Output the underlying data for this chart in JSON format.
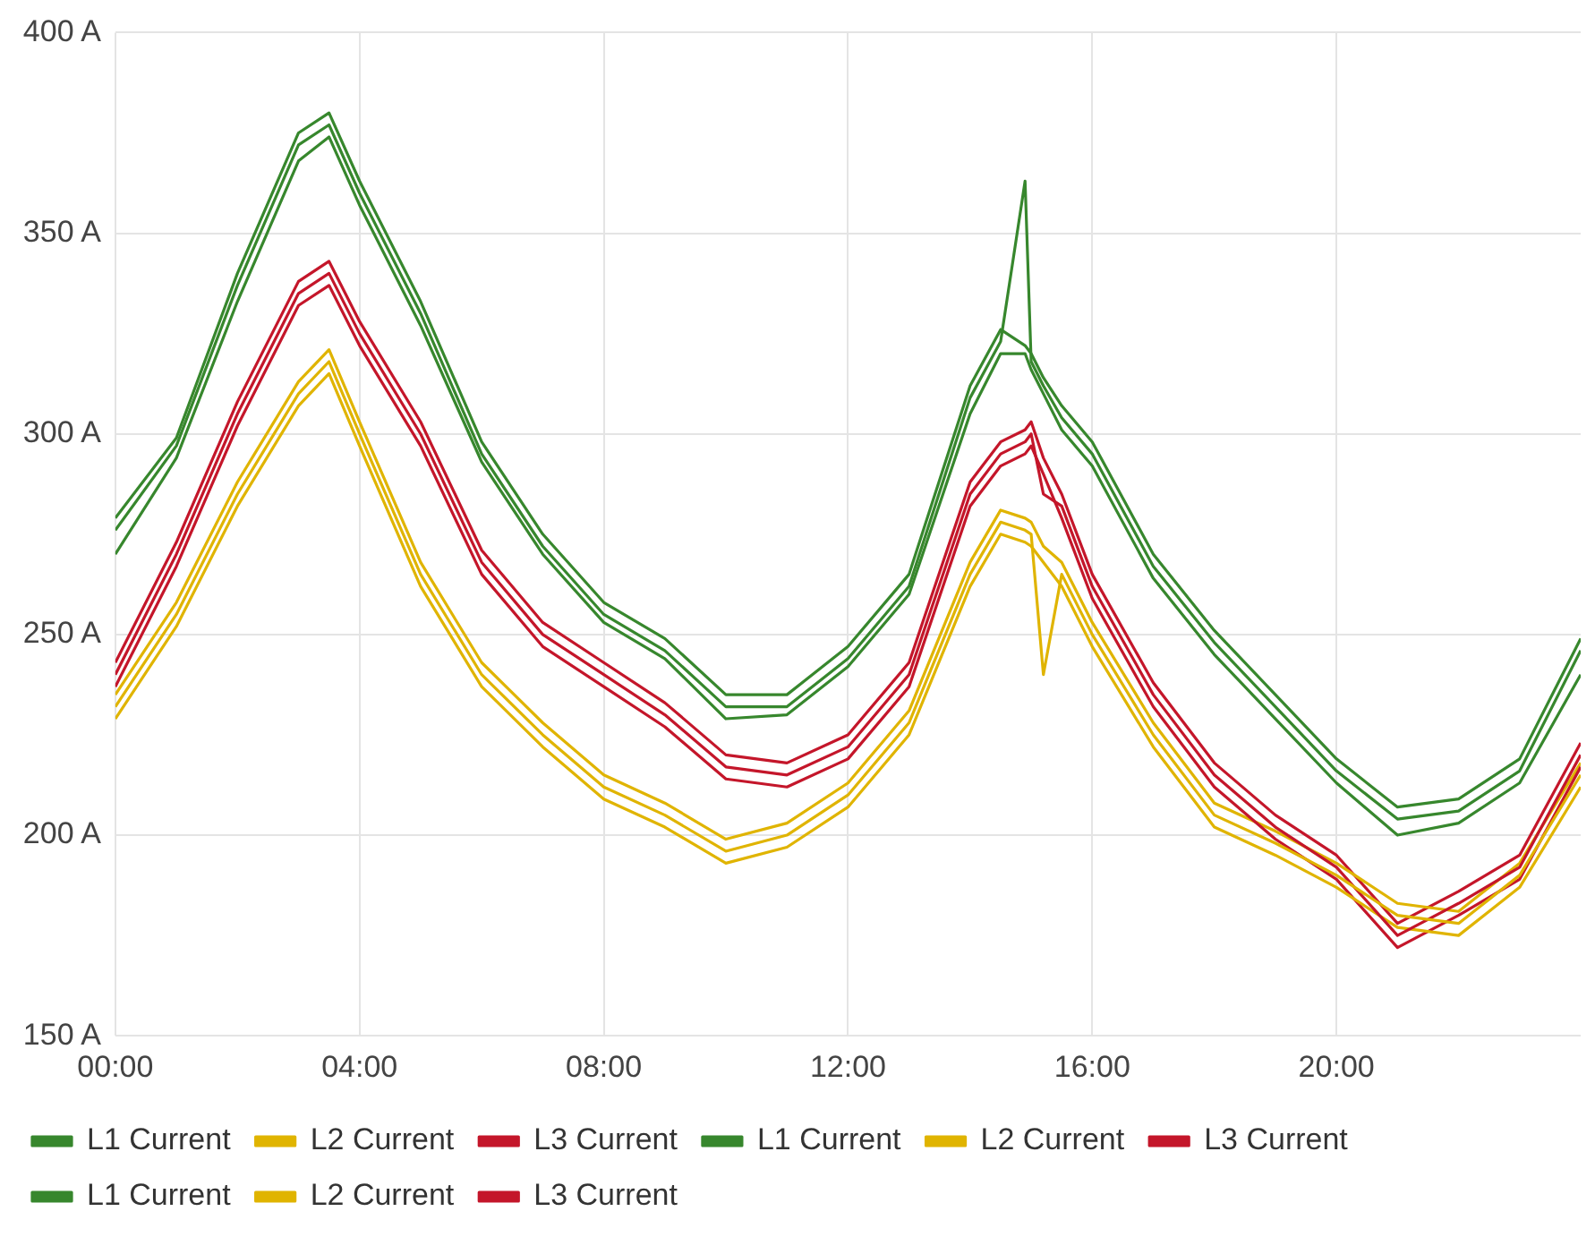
{
  "chart_data": {
    "type": "line",
    "x": [
      0,
      1,
      2,
      3,
      3.5,
      4,
      5,
      6,
      7,
      8,
      9,
      10,
      11,
      12,
      13,
      14,
      14.5,
      14.9,
      15,
      15.2,
      15.5,
      16,
      17,
      18,
      19,
      20,
      21,
      22,
      23,
      24
    ],
    "xlim": [
      0,
      24
    ],
    "xticks": [
      {
        "value": 0,
        "label": "00:00"
      },
      {
        "value": 4,
        "label": "04:00"
      },
      {
        "value": 8,
        "label": "08:00"
      },
      {
        "value": 12,
        "label": "12:00"
      },
      {
        "value": 16,
        "label": "16:00"
      },
      {
        "value": 20,
        "label": "20:00"
      }
    ],
    "ylim": [
      150,
      400
    ],
    "yticks": [
      {
        "value": 150,
        "label": "150 A"
      },
      {
        "value": 200,
        "label": "200 A"
      },
      {
        "value": 250,
        "label": "250 A"
      },
      {
        "value": 300,
        "label": "300 A"
      },
      {
        "value": 350,
        "label": "350 A"
      },
      {
        "value": 400,
        "label": "400 A"
      }
    ],
    "grid": true,
    "legend": "bottom",
    "marker": "none",
    "line_style": "solid",
    "series": [
      {
        "name": "L1 Current",
        "color": "#37872d",
        "values": [
          276,
          297,
          337,
          372,
          377,
          360,
          330,
          295,
          272,
          255,
          246,
          232,
          232,
          244,
          262,
          309,
          323,
          363,
          318,
          312,
          304,
          295,
          267,
          248,
          232,
          216,
          204,
          206,
          216,
          246
        ]
      },
      {
        "name": "L2 Current",
        "color": "#e0b400",
        "values": [
          232,
          255,
          285,
          310,
          318,
          300,
          265,
          240,
          225,
          212,
          205,
          196,
          200,
          210,
          228,
          265,
          278,
          276,
          275,
          240,
          265,
          250,
          225,
          205,
          198,
          190,
          180,
          178,
          190,
          215
        ]
      },
      {
        "name": "L3 Current",
        "color": "#c4162a",
        "values": [
          240,
          270,
          305,
          335,
          340,
          325,
          300,
          268,
          250,
          240,
          230,
          217,
          215,
          222,
          240,
          285,
          295,
          298,
          300,
          285,
          282,
          262,
          235,
          215,
          202,
          192,
          175,
          183,
          192,
          220
        ]
      },
      {
        "name": "L1 Current",
        "color": "#37872d",
        "values": [
          270,
          294,
          333,
          368,
          374,
          357,
          327,
          293,
          270,
          253,
          244,
          229,
          230,
          242,
          260,
          305,
          320,
          320,
          316,
          310,
          301,
          292,
          264,
          245,
          229,
          213,
          200,
          203,
          213,
          240
        ]
      },
      {
        "name": "L2 Current",
        "color": "#e0b400",
        "values": [
          229,
          252,
          282,
          307,
          315,
          297,
          262,
          237,
          222,
          209,
          202,
          193,
          197,
          207,
          225,
          262,
          275,
          273,
          272,
          268,
          262,
          247,
          222,
          202,
          195,
          187,
          177,
          175,
          187,
          212
        ]
      },
      {
        "name": "L3 Current",
        "color": "#c4162a",
        "values": [
          237,
          267,
          302,
          332,
          337,
          322,
          297,
          265,
          247,
          237,
          227,
          214,
          212,
          219,
          237,
          282,
          292,
          295,
          297,
          290,
          279,
          259,
          232,
          212,
          199,
          189,
          172,
          180,
          189,
          217
        ]
      },
      {
        "name": "L1 Current",
        "color": "#37872d",
        "values": [
          279,
          299,
          340,
          375,
          380,
          363,
          333,
          298,
          275,
          258,
          249,
          235,
          235,
          247,
          265,
          312,
          326,
          322,
          320,
          314,
          307,
          298,
          270,
          251,
          235,
          219,
          207,
          209,
          219,
          249
        ]
      },
      {
        "name": "L2 Current",
        "color": "#e0b400",
        "values": [
          235,
          258,
          288,
          313,
          321,
          303,
          268,
          243,
          228,
          215,
          208,
          199,
          203,
          213,
          231,
          268,
          281,
          279,
          278,
          272,
          268,
          253,
          228,
          208,
          201,
          193,
          183,
          181,
          193,
          218
        ]
      },
      {
        "name": "L3 Current",
        "color": "#c4162a",
        "values": [
          243,
          273,
          308,
          338,
          343,
          328,
          303,
          271,
          253,
          243,
          233,
          220,
          218,
          225,
          243,
          288,
          298,
          301,
          303,
          294,
          285,
          265,
          238,
          218,
          205,
          195,
          178,
          186,
          195,
          223
        ]
      }
    ]
  }
}
